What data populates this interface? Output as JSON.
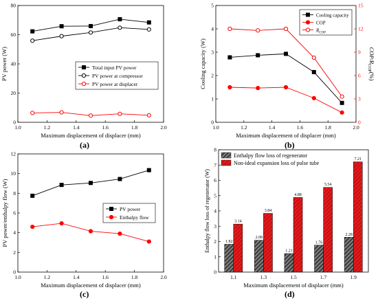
{
  "chart_data": [
    {
      "id": "a",
      "type": "line",
      "panel_label": "(a)",
      "xlabel": "Maximum displacement of displacer (mm)",
      "ylabel": "PV power (W)",
      "xlim": [
        1.0,
        2.0
      ],
      "ylim": [
        0,
        80
      ],
      "xticks": [
        "1.0",
        "1.2",
        "1.4",
        "1.6",
        "1.8",
        "2.0"
      ],
      "yticks": [
        "0",
        "20",
        "40",
        "60",
        "80"
      ],
      "x": [
        1.1,
        1.3,
        1.5,
        1.7,
        1.9
      ],
      "legend_position": "center-right",
      "series": [
        {
          "name": "Total input PV power",
          "color": "#000000",
          "marker": "filled-square",
          "values": [
            62.3,
            65.8,
            65.9,
            70.6,
            68.4
          ]
        },
        {
          "name": "PV power at compressor",
          "color": "#000000",
          "marker": "open-circle",
          "values": [
            55.9,
            59.0,
            61.5,
            64.8,
            63.6
          ]
        },
        {
          "name": "PV power at displacer",
          "color": "#ff0000",
          "marker": "open-circle",
          "values": [
            6.4,
            6.8,
            4.6,
            5.8,
            4.8
          ]
        }
      ]
    },
    {
      "id": "b",
      "type": "line",
      "panel_label": "(b)",
      "xlabel": "Maximum displacement of displacer (mm)",
      "ylabel": "Cooling capacity (W)",
      "y2label": "COP/R_COP(%)",
      "xlim": [
        1.0,
        2.0
      ],
      "ylim": [
        0,
        5
      ],
      "y2lim": [
        0,
        15
      ],
      "xticks": [
        "1.0",
        "1.2",
        "1.4",
        "1.6",
        "1.8",
        "2.0"
      ],
      "yticks": [
        "0",
        "1",
        "2",
        "3",
        "4",
        "5"
      ],
      "y2ticks": [
        "0",
        "3",
        "6",
        "9",
        "12",
        "15"
      ],
      "x": [
        1.1,
        1.3,
        1.5,
        1.7,
        1.9
      ],
      "legend_position": "top-right",
      "series": [
        {
          "name": "Cooling capacity",
          "axis": "left",
          "color": "#000000",
          "marker": "filled-square",
          "values": [
            2.78,
            2.87,
            2.93,
            2.15,
            0.83
          ]
        },
        {
          "name": "COP",
          "axis": "right",
          "color": "#ff0000",
          "marker": "filled-circle",
          "values": [
            4.5,
            4.4,
            4.5,
            3.1,
            1.25
          ]
        },
        {
          "name": "R_COP",
          "axis": "right",
          "color": "#ff0000",
          "marker": "open-circle",
          "values": [
            12.0,
            11.8,
            12.0,
            8.3,
            3.3
          ]
        }
      ]
    },
    {
      "id": "c",
      "type": "line",
      "panel_label": "(c)",
      "xlabel": "Maximum displacement of displacer (mm)",
      "ylabel": "PV power/enthalpy flow (W)",
      "xlim": [
        1.0,
        2.0
      ],
      "ylim": [
        0,
        12
      ],
      "xticks": [
        "1.0",
        "1.2",
        "1.4",
        "1.6",
        "1.8",
        "2.0"
      ],
      "yticks": [
        "0",
        "2",
        "4",
        "6",
        "8",
        "10",
        "12"
      ],
      "x": [
        1.1,
        1.3,
        1.5,
        1.7,
        1.9
      ],
      "legend_position": "center-right",
      "series": [
        {
          "name": "PV power",
          "color": "#000000",
          "marker": "filled-square",
          "values": [
            7.75,
            8.85,
            9.05,
            9.45,
            10.35
          ]
        },
        {
          "name": "Enthalpy flow",
          "color": "#ff0000",
          "marker": "filled-circle",
          "values": [
            4.6,
            4.95,
            4.15,
            3.9,
            3.1
          ]
        }
      ]
    },
    {
      "id": "d",
      "type": "bar",
      "panel_label": "(d)",
      "xlabel": "Maximum displacement of displacer (mm)",
      "ylabel": "Enthalpy flow loss of regenerator (W)",
      "categories": [
        "1.1",
        "1.3",
        "1.5",
        "1.7",
        "1.9"
      ],
      "ylim": [
        0,
        8
      ],
      "yticks": [
        "0",
        "1",
        "2",
        "3",
        "4",
        "5",
        "6",
        "7",
        "8"
      ],
      "legend_position": "top-left",
      "series": [
        {
          "name": "Enthalpy flow loss of regenerator",
          "color": "#555555",
          "values": [
            1.82,
            2.08,
            1.21,
            1.76,
            2.28
          ],
          "labels": [
            "1.82",
            "2.08",
            "1.21",
            "1.76",
            "2.28"
          ]
        },
        {
          "name": "Non-ideal expansion loss of pulse tube",
          "color": "#e31a1c",
          "values": [
            3.14,
            3.84,
            4.88,
            5.54,
            7.21
          ],
          "labels": [
            "3.14",
            "3.84",
            "4.88",
            "5.54",
            "7.21"
          ]
        }
      ]
    }
  ]
}
